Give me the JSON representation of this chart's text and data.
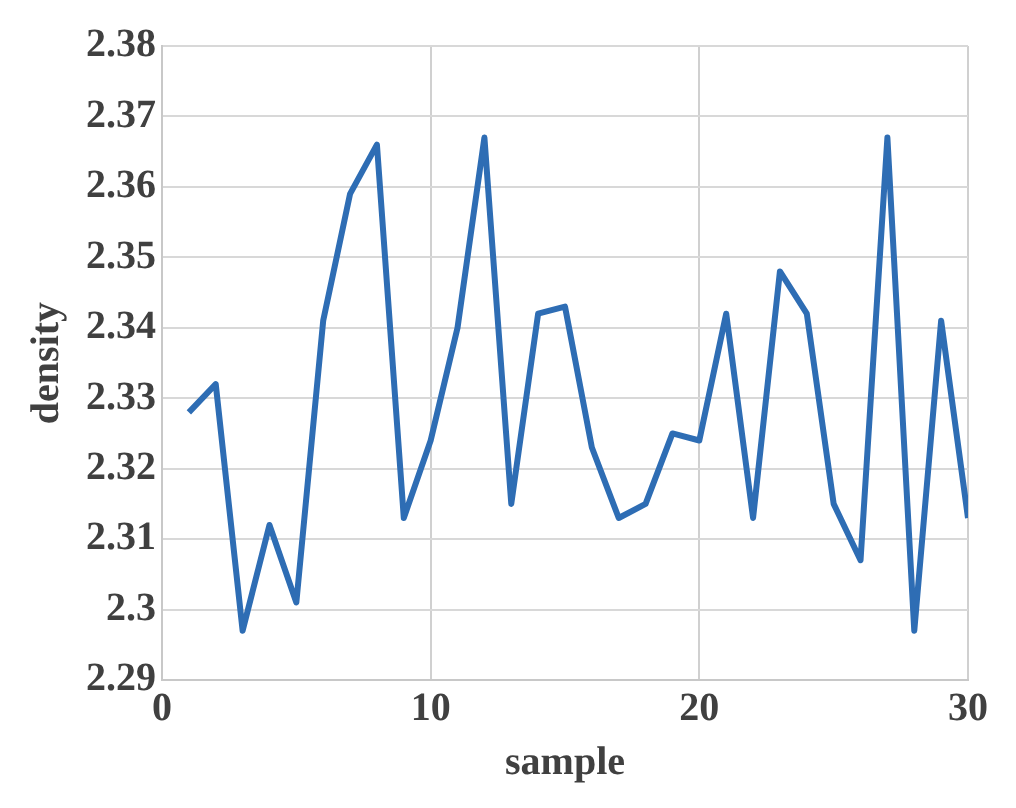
{
  "chart_data": {
    "type": "line",
    "xlabel": "sample",
    "ylabel": "density",
    "x": [
      1,
      2,
      3,
      4,
      5,
      6,
      7,
      8,
      9,
      10,
      11,
      12,
      13,
      14,
      15,
      16,
      17,
      18,
      19,
      20,
      21,
      22,
      23,
      24,
      25,
      26,
      27,
      28,
      29,
      30
    ],
    "series": [
      {
        "color": "#2e6db4",
        "values": [
          2.328,
          2.332,
          2.297,
          2.312,
          2.301,
          2.341,
          2.359,
          2.366,
          2.313,
          2.324,
          2.34,
          2.367,
          2.315,
          2.342,
          2.343,
          2.323,
          2.313,
          2.315,
          2.325,
          2.324,
          2.342,
          2.313,
          2.348,
          2.342,
          2.315,
          2.307,
          2.367,
          2.297,
          2.341,
          2.313
        ]
      }
    ],
    "xlim": [
      0,
      30
    ],
    "xticks": [
      0,
      10,
      20,
      30
    ],
    "ylim": [
      2.29,
      2.38
    ],
    "yticks": [
      2.29,
      2.3,
      2.31,
      2.32,
      2.33,
      2.34,
      2.35,
      2.36,
      2.37,
      2.38
    ],
    "grid": true,
    "legend": false,
    "marker": "none",
    "line_style": "solid"
  }
}
